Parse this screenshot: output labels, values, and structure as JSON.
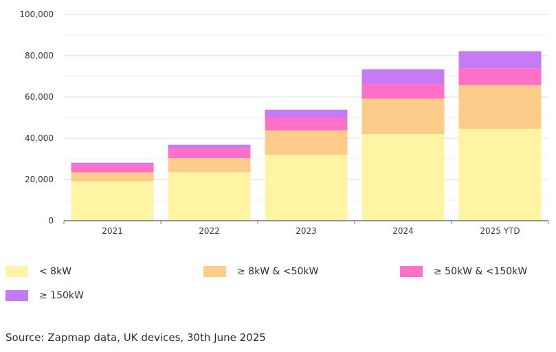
{
  "chart_data": {
    "type": "bar",
    "stacked": true,
    "categories": [
      "2021",
      "2022",
      "2023",
      "2024",
      "2025 YTD"
    ],
    "series": [
      {
        "name": "< 8kW",
        "color": "#fff4a3",
        "values": [
          19000,
          23500,
          32000,
          42000,
          44500
        ]
      },
      {
        "name": "≥ 8kW & <50kW",
        "color": "#fdcb8a",
        "values": [
          4500,
          6800,
          11800,
          17200,
          21200
        ]
      },
      {
        "name": "≥ 50kW & <150kW",
        "color": "#ff70c8",
        "values": [
          3700,
          5000,
          6200,
          7300,
          8200
        ]
      },
      {
        "name": "≥ 150kW",
        "color": "#c57bf5",
        "values": [
          900,
          1500,
          3800,
          6900,
          8300
        ]
      }
    ],
    "ylim": [
      0,
      100000
    ],
    "yticks": [
      0,
      20000,
      40000,
      60000,
      80000,
      100000
    ],
    "ytick_labels": [
      "0",
      "20,000",
      "40,000",
      "60,000",
      "80,000",
      "100,000"
    ],
    "grid": true,
    "legend_position": "bottom"
  },
  "source_note": "Source: Zapmap data, UK devices, 30th June 2025"
}
